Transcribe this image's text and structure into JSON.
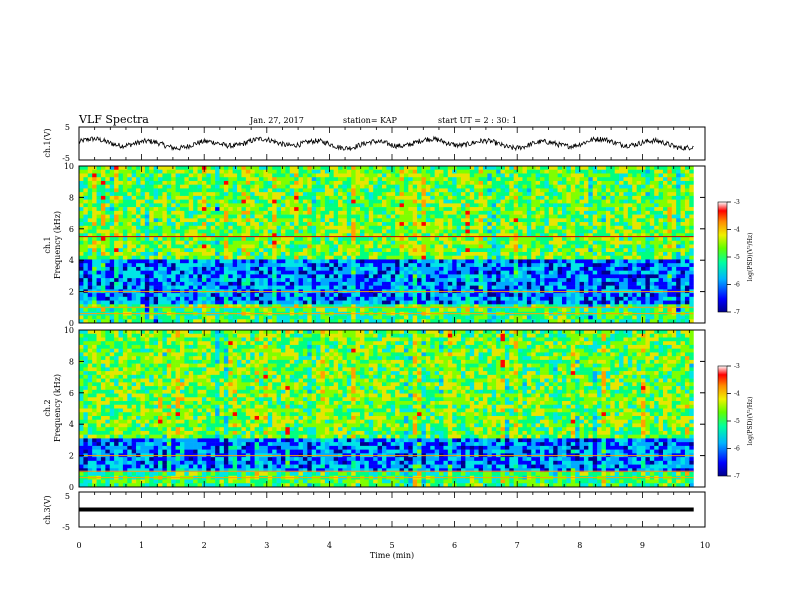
{
  "header": {
    "title": "VLF Spectra",
    "date": "Jan. 27, 2017",
    "station": "station= KAP",
    "start": "start UT =  2 : 30: 1"
  },
  "chart_data": [
    {
      "type": "line",
      "panel": "ch1-waveform",
      "ylabel": "ch.1(V)",
      "ylim": [
        -5,
        5
      ],
      "yticks": [
        "5",
        "-5"
      ],
      "x_range_min": [
        0,
        9.82
      ],
      "series_mean_v": 0,
      "amplitude_v": [
        -1.5,
        1.5
      ]
    },
    {
      "type": "heatmap",
      "panel": "ch1-spectrogram",
      "ylabel_line1": "ch.1",
      "ylabel_line2": "Frequency (kHz)",
      "ylim_khz": [
        0,
        10
      ],
      "yticks": [
        "0",
        "2",
        "4",
        "6",
        "8",
        "10"
      ],
      "x_range_min": [
        0,
        9.82
      ],
      "colorbar": {
        "label": "log(PSD)(V²/Hz)",
        "range": [
          -7,
          -3
        ],
        "ticks": [
          "-3",
          "-4",
          "-5",
          "-6",
          "-7"
        ]
      },
      "bands_khz": {
        "low_psd_blue": [
          1.3,
          4.0
        ],
        "high_psd_green": [
          4.0,
          10.0
        ],
        "red_line": 5.5
      },
      "colors": [
        "#00008c",
        "#0000ff",
        "#00aaff",
        "#00e6e6",
        "#00ff80",
        "#7fff00",
        "#e6e600",
        "#ffa000",
        "#ff0000",
        "#b40000"
      ]
    },
    {
      "type": "heatmap",
      "panel": "ch2-spectrogram",
      "ylabel_line1": "ch.2",
      "ylabel_line2": "Frequency (kHz)",
      "ylim_khz": [
        0,
        10
      ],
      "yticks": [
        "0",
        "2",
        "4",
        "6",
        "8",
        "10"
      ],
      "x_range_min": [
        0,
        9.82
      ],
      "colorbar": {
        "label": "log(PSD)(V²/Hz)",
        "range": [
          -7,
          -3
        ],
        "ticks": [
          "-3",
          "-4",
          "-5",
          "-6",
          "-7"
        ]
      },
      "bands_khz": {
        "low_psd_blue": [
          1.0,
          3.0
        ],
        "high_psd_green": [
          3.0,
          10.0
        ]
      },
      "colors": [
        "#00008c",
        "#0000ff",
        "#00aaff",
        "#00e6e6",
        "#00ff80",
        "#7fff00",
        "#e6e600",
        "#ffa000",
        "#ff0000",
        "#b40000"
      ]
    },
    {
      "type": "line",
      "panel": "ch3-waveform",
      "ylabel": "ch.3(V)",
      "ylim": [
        -5,
        5
      ],
      "yticks": [
        "5",
        "-5"
      ],
      "x_range_min": [
        0,
        9.82
      ],
      "series_value_v": 0
    }
  ],
  "xaxis": {
    "label": "Time (min)",
    "ticks": [
      "0",
      "1",
      "2",
      "3",
      "4",
      "5",
      "6",
      "7",
      "8",
      "9",
      "10"
    ],
    "range": [
      0,
      10
    ]
  }
}
